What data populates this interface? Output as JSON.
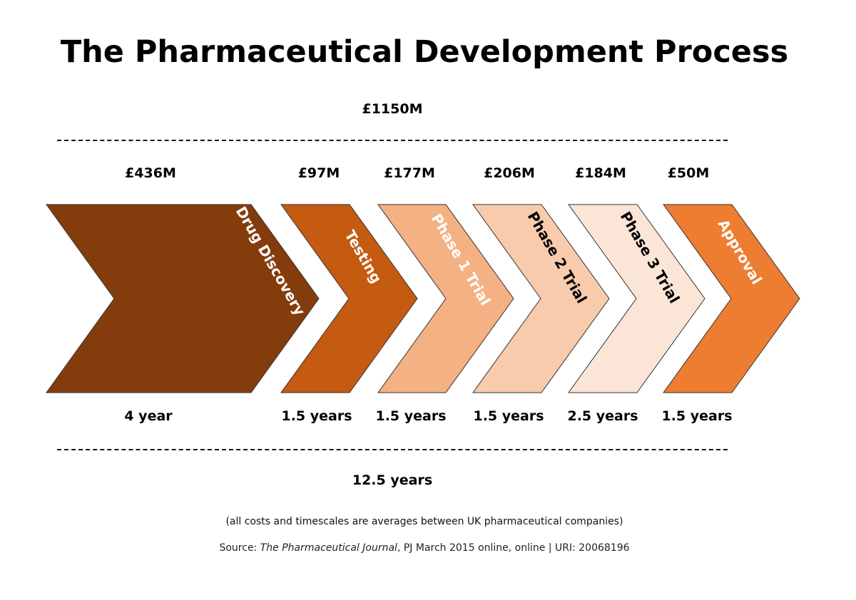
{
  "title": "The Pharmaceutical Development Process",
  "total_cost": "£1150M",
  "total_duration": "12.5 years",
  "stages": [
    {
      "label": "Drug Discovery",
      "cost": "£436M",
      "duration": "4 year",
      "color": "#843C0C",
      "text_color": "#ffffff"
    },
    {
      "label": "Testing",
      "cost": "£97M",
      "duration": "1.5 years",
      "color": "#C55A11",
      "text_color": "#ffffff"
    },
    {
      "label": "Phase 1 Trial",
      "cost": "£177M",
      "duration": "1.5 years",
      "color": "#F4B183",
      "text_color": "#ffffff"
    },
    {
      "label": "Phase 2 Trial",
      "cost": "£206M",
      "duration": "1.5 years",
      "color": "#F8CBAD",
      "text_color": "#000000"
    },
    {
      "label": "Phase 3 Trial",
      "cost": "£184M",
      "duration": "2.5 years",
      "color": "#FBE5D6",
      "text_color": "#000000"
    },
    {
      "label": "Approval",
      "cost": "£50M",
      "duration": "1.5 years",
      "color": "#ED7D31",
      "text_color": "#ffffff"
    }
  ],
  "footnote": "(all costs and timescales are averages between UK pharmaceutical companies)",
  "source": {
    "prefix": "Source: ",
    "journal": "The Pharmaceutical Journal",
    "rest": ", PJ March 2015 online, online | URI: 20068196"
  }
}
